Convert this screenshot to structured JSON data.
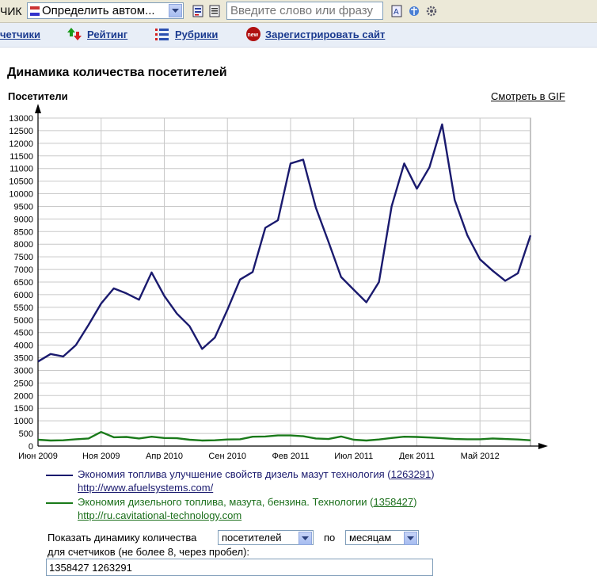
{
  "toolbar": {
    "clipped_text": "ЧИК",
    "language_select": "Определить автом...",
    "search_placeholder": "Введите слово или фразу"
  },
  "nav": {
    "items": [
      {
        "label": "четчики"
      },
      {
        "label": "Рейтинг"
      },
      {
        "label": "Рубрики"
      },
      {
        "label": "Зарегистрировать сайт"
      }
    ]
  },
  "page": {
    "title": "Динамика количества посетителей",
    "gif_link": "Смотреть в GIF"
  },
  "chart_data": {
    "type": "line",
    "ylabel": "Посетители",
    "ylim": [
      0,
      13000
    ],
    "yticks": [
      0,
      500,
      1000,
      1500,
      2000,
      2500,
      3000,
      3500,
      4000,
      4500,
      5000,
      5500,
      6000,
      6500,
      7000,
      7500,
      8000,
      8500,
      9000,
      9500,
      10000,
      10500,
      11000,
      11500,
      12000,
      12500,
      13000
    ],
    "x_tick_labels": [
      "Июн 2009",
      "Ноя 2009",
      "Апр 2010",
      "Сен 2010",
      "Фев 2011",
      "Июл 2011",
      "Дек 2011",
      "Май 2012"
    ],
    "x_months_count": 39,
    "grid": true,
    "series": [
      {
        "name": "Экономия топлива улучшение свойств дизель мазут технология",
        "id": "1263291",
        "url": "http://www.afuelsystems.com/",
        "color": "#1a1a6e",
        "values": [
          3350,
          3650,
          3550,
          4000,
          4800,
          5650,
          6250,
          6050,
          5800,
          6880,
          5950,
          5250,
          4750,
          3850,
          4300,
          5400,
          6600,
          6900,
          8650,
          8950,
          11200,
          11350,
          9450,
          8100,
          6700,
          6200,
          5700,
          6500,
          9500,
          11200,
          10200,
          11050,
          12750,
          9750,
          8350,
          7400,
          6950,
          6550,
          6850,
          8350
        ]
      },
      {
        "name": "Экономия дизельного топлива, мазута, бензина. Технологии",
        "id": "1358427",
        "url": "http://ru.cavitational-technology.com",
        "color": "#1a7a1a",
        "values": [
          250,
          220,
          230,
          270,
          300,
          560,
          350,
          360,
          300,
          370,
          320,
          310,
          250,
          220,
          230,
          260,
          270,
          370,
          380,
          420,
          420,
          390,
          300,
          280,
          380,
          250,
          220,
          260,
          320,
          370,
          360,
          340,
          310,
          280,
          270,
          270,
          300,
          280,
          260,
          230
        ]
      }
    ]
  },
  "form": {
    "label_show": "Показать динамику количества",
    "metric_select": "посетителей",
    "label_by": "по",
    "period_select": "месяцам",
    "label_counters": "для счетчиков (не более 8, через пробел):",
    "ids_value": "1358427 1263291"
  }
}
